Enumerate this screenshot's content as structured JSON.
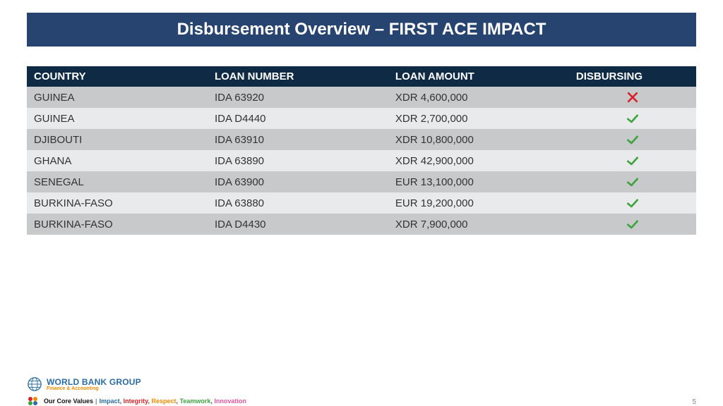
{
  "title": "Disbursement Overview – FIRST ACE IMPACT",
  "title_bar": {
    "bg": "#26446f",
    "color": "#ffffff",
    "fontsize": 24
  },
  "table": {
    "header_bg": "#0f2a44",
    "header_color": "#ffffff",
    "header_fontsize": 15,
    "row_alt_bg_a": "#c7c9cb",
    "row_alt_bg_b": "#e9eaeb",
    "row_color": "#333333",
    "row_fontsize": 15,
    "col_widths": [
      "27%",
      "27%",
      "27%",
      "19%"
    ],
    "columns": [
      "COUNTRY",
      "LOAN NUMBER",
      "LOAN AMOUNT",
      "DISBURSING"
    ],
    "rows": [
      {
        "country": "GUINEA",
        "loan_number": "IDA 63920",
        "loan_amount": "XDR 4,600,000",
        "disbursing": "no"
      },
      {
        "country": "GUINEA",
        "loan_number": "IDA D4440",
        "loan_amount": "XDR 2,700,000",
        "disbursing": "yes"
      },
      {
        "country": "DJIBOUTI",
        "loan_number": "IDA 63910",
        "loan_amount": "XDR 10,800,000",
        "disbursing": "yes"
      },
      {
        "country": "GHANA",
        "loan_number": "IDA 63890",
        "loan_amount": "XDR 42,900,000",
        "disbursing": "yes"
      },
      {
        "country": "SENEGAL",
        "loan_number": "IDA 63900",
        "loan_amount": "EUR 13,100,000",
        "disbursing": "yes"
      },
      {
        "country": "BURKINA-FASO",
        "loan_number": "IDA 63880",
        "loan_amount": "EUR 19,200,000",
        "disbursing": "yes"
      },
      {
        "country": "BURKINA-FASO",
        "loan_number": "IDA D4430",
        "loan_amount": "XDR 7,900,000",
        "disbursing": "yes"
      }
    ]
  },
  "icons": {
    "check_color": "#3fa33f",
    "cross_color": "#d8232a"
  },
  "footer": {
    "logo_color": "#2a6ca3",
    "wbg_text": "WORLD BANK GROUP",
    "wbg_fontsize": 12,
    "wbg_sub": "Finance & Accounting",
    "wbg_sub_color": "#f08c00",
    "wbg_sub_fontsize": 7,
    "values_label": "Our Core Values",
    "values_label_color": "#111111",
    "values_label_fontsize": 9,
    "values": [
      {
        "text": "Impact",
        "color": "#2a6ca3"
      },
      {
        "text": "Integrity",
        "color": "#d8232a"
      },
      {
        "text": "Respect",
        "color": "#f08c00"
      },
      {
        "text": "Teamwork",
        "color": "#3fa33f"
      },
      {
        "text": "Innovation",
        "color": "#e255a1"
      }
    ],
    "dot_colors": [
      "#d8232a",
      "#f08c00",
      "#3fa33f",
      "#2a6ca3"
    ]
  },
  "page_number": "5"
}
